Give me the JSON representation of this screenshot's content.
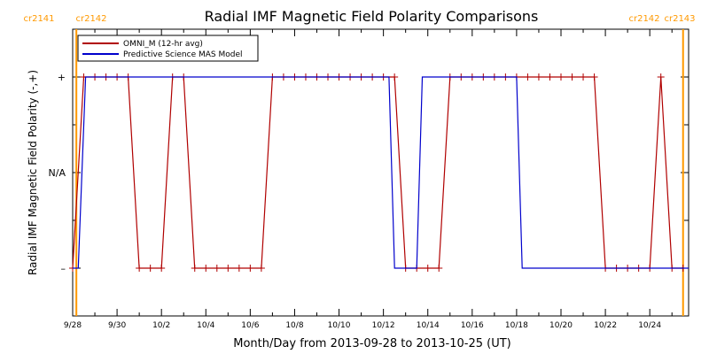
{
  "chart_data": {
    "type": "line",
    "title": "Radial IMF Magnetic Field Polarity Comparisons",
    "xlabel": "Month/Day from 2013-09-28 to 2013-10-25 (UT)",
    "ylabel": "Radial IMF Magnetic Field Polarity (-,+)",
    "xlim": [
      "2013-09-28",
      "2013-10-25T18:00"
    ],
    "ylim": [
      -1.5,
      1.5
    ],
    "x_tick_labels": [
      "9/28",
      "9/30",
      "10/2",
      "10/4",
      "10/6",
      "10/8",
      "10/10",
      "10/12",
      "10/14",
      "10/16",
      "10/18",
      "10/20",
      "10/22",
      "10/24"
    ],
    "y_tick_labels": [
      "+",
      "N/A",
      "–"
    ],
    "y_tick_values": [
      1,
      0,
      -1
    ],
    "legend_position": "top-left",
    "carrington_markers": [
      {
        "date": "2013-09-28T04:00",
        "left_label": "cr2141",
        "right_label": "cr2142",
        "color": "#ff9900"
      },
      {
        "date": "2013-10-25T12:00",
        "left_label": "cr2142",
        "right_label": "cr2143",
        "color": "#ff9900"
      }
    ],
    "series": [
      {
        "name": "OMNI_M (12-hr avg)",
        "color": "#b00000",
        "style": "line+plus",
        "points": [
          [
            "2013-09-28T00:00",
            -1
          ],
          [
            "2013-09-28T12:00",
            1
          ],
          [
            "2013-09-29T00:00",
            1
          ],
          [
            "2013-09-29T12:00",
            1
          ],
          [
            "2013-09-30T00:00",
            1
          ],
          [
            "2013-09-30T12:00",
            1
          ],
          [
            "2013-10-01T00:00",
            -1
          ],
          [
            "2013-10-01T12:00",
            -1
          ],
          [
            "2013-10-02T00:00",
            -1
          ],
          [
            "2013-10-02T12:00",
            1
          ],
          [
            "2013-10-03T00:00",
            1
          ],
          [
            "2013-10-03T12:00",
            -1
          ],
          [
            "2013-10-04T00:00",
            -1
          ],
          [
            "2013-10-04T12:00",
            -1
          ],
          [
            "2013-10-05T00:00",
            -1
          ],
          [
            "2013-10-05T12:00",
            -1
          ],
          [
            "2013-10-06T00:00",
            -1
          ],
          [
            "2013-10-06T12:00",
            -1
          ],
          [
            "2013-10-07T00:00",
            1
          ],
          [
            "2013-10-07T12:00",
            1
          ],
          [
            "2013-10-08T00:00",
            1
          ],
          [
            "2013-10-08T12:00",
            1
          ],
          [
            "2013-10-09T00:00",
            1
          ],
          [
            "2013-10-09T12:00",
            1
          ],
          [
            "2013-10-10T00:00",
            1
          ],
          [
            "2013-10-10T12:00",
            1
          ],
          [
            "2013-10-11T00:00",
            1
          ],
          [
            "2013-10-11T12:00",
            1
          ],
          [
            "2013-10-12T00:00",
            1
          ],
          [
            "2013-10-12T12:00",
            1
          ],
          [
            "2013-10-13T00:00",
            -1
          ],
          [
            "2013-10-13T12:00",
            -1
          ],
          [
            "2013-10-14T00:00",
            -1
          ],
          [
            "2013-10-14T12:00",
            -1
          ],
          [
            "2013-10-15T00:00",
            1
          ],
          [
            "2013-10-15T12:00",
            1
          ],
          [
            "2013-10-16T00:00",
            1
          ],
          [
            "2013-10-16T12:00",
            1
          ],
          [
            "2013-10-17T00:00",
            1
          ],
          [
            "2013-10-17T12:00",
            1
          ],
          [
            "2013-10-18T00:00",
            1
          ],
          [
            "2013-10-18T12:00",
            1
          ],
          [
            "2013-10-19T00:00",
            1
          ],
          [
            "2013-10-19T12:00",
            1
          ],
          [
            "2013-10-20T00:00",
            1
          ],
          [
            "2013-10-20T12:00",
            1
          ],
          [
            "2013-10-21T00:00",
            1
          ],
          [
            "2013-10-21T12:00",
            1
          ],
          [
            "2013-10-22T00:00",
            -1
          ],
          [
            "2013-10-22T12:00",
            -1
          ],
          [
            "2013-10-23T00:00",
            -1
          ],
          [
            "2013-10-23T12:00",
            -1
          ],
          [
            "2013-10-24T00:00",
            -1
          ],
          [
            "2013-10-24T12:00",
            1
          ],
          [
            "2013-10-25T00:00",
            -1
          ],
          [
            "2013-10-25T12:00",
            -1
          ]
        ]
      },
      {
        "name": "Predictive Science MAS Model",
        "color": "#0000cc",
        "style": "step",
        "points": [
          [
            "2013-09-28T00:00",
            -1
          ],
          [
            "2013-09-28T06:00",
            -1
          ],
          [
            "2013-09-28T14:00",
            1
          ],
          [
            "2013-10-12T06:00",
            1
          ],
          [
            "2013-10-12T12:00",
            -1
          ],
          [
            "2013-10-13T12:00",
            -1
          ],
          [
            "2013-10-13T18:00",
            1
          ],
          [
            "2013-10-18T00:00",
            1
          ],
          [
            "2013-10-18T06:00",
            -1
          ],
          [
            "2013-10-25T18:00",
            -1
          ]
        ]
      }
    ]
  }
}
